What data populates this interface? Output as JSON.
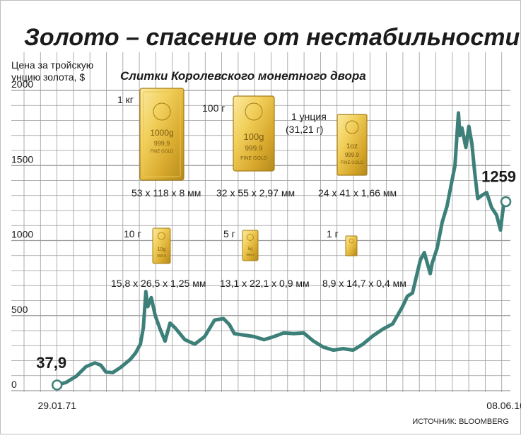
{
  "chart_data": {
    "type": "line",
    "title": "Золото – спасение от нестабильности",
    "ylabel": "Цена за тройскую унцию золота, $",
    "ylim": [
      0,
      2000
    ],
    "y_ticks": [
      "2000",
      "1500",
      "1000",
      "500",
      "0"
    ],
    "x_tick_labels": [
      "29.01.71",
      "08.06.16"
    ],
    "grid": true,
    "series": [
      {
        "name": "",
        "color": "#3d8079",
        "x": [
          1971.08,
          1972.0,
          1973.0,
          1974.0,
          1974.9,
          1975.5,
          1976.0,
          1976.7,
          1977.5,
          1978.5,
          1979.0,
          1979.5,
          1979.8,
          1980.05,
          1980.25,
          1980.6,
          1981.0,
          1981.5,
          1982.0,
          1982.5,
          1983.0,
          1983.5,
          1984.0,
          1985.0,
          1986.0,
          1987.0,
          1987.9,
          1988.5,
          1989.0,
          1990.0,
          1991.0,
          1992.0,
          1993.0,
          1994.0,
          1995.0,
          1996.0,
          1997.0,
          1998.0,
          1999.0,
          2000.0,
          2001.0,
          2002.0,
          2003.0,
          2004.0,
          2005.0,
          2006.0,
          2006.5,
          2007.0,
          2007.8,
          2008.2,
          2008.8,
          2009.0,
          2009.5,
          2010.0,
          2010.5,
          2011.0,
          2011.3,
          2011.65,
          2011.8,
          2012.0,
          2012.4,
          2012.7,
          2013.0,
          2013.3,
          2013.6,
          2014.0,
          2014.5,
          2015.0,
          2015.5,
          2015.9,
          2016.1,
          2016.3,
          2016.44
        ],
        "values": [
          37.9,
          55,
          95,
          160,
          185,
          170,
          125,
          120,
          155,
          210,
          250,
          310,
          420,
          660,
          560,
          620,
          500,
          410,
          330,
          450,
          420,
          380,
          340,
          310,
          360,
          470,
          480,
          440,
          380,
          370,
          360,
          340,
          360,
          385,
          380,
          385,
          330,
          290,
          270,
          280,
          270,
          310,
          365,
          410,
          445,
          560,
          630,
          650,
          870,
          920,
          780,
          850,
          950,
          1120,
          1230,
          1400,
          1500,
          1850,
          1700,
          1750,
          1620,
          1760,
          1650,
          1450,
          1280,
          1300,
          1320,
          1220,
          1170,
          1070,
          1180,
          1270,
          1259
        ]
      }
    ],
    "xlim": [
      1969.6,
      2016.9
    ],
    "annotations": [
      {
        "label": "37,9",
        "x": 1971.08,
        "y": 37.9
      },
      {
        "label": "1259",
        "x": 2016.44,
        "y": 1259
      }
    ]
  },
  "bars_panel": {
    "title": "Слитки Королевского монетного двора",
    "items": [
      {
        "weight": "1 кг",
        "size": "53 x 118 x 8 мм",
        "stamp_lines": [
          "1000g",
          "999.9",
          "FINE GOLD"
        ]
      },
      {
        "weight": "100 г",
        "size": "32 x 55 x 2,97 мм",
        "stamp_lines": [
          "100g",
          "999.9",
          "FINE GOLD"
        ]
      },
      {
        "weight": "1 унция",
        "weight_note": "(31,21 г)",
        "size": "24 x 41 x 1,66 мм",
        "stamp_lines": [
          "1oz",
          "999.9",
          "FINE GOLD"
        ]
      },
      {
        "weight": "10 г",
        "size": "15,8 x 26,5 x 1,25 мм",
        "stamp_lines": [
          "10g",
          "999.9"
        ]
      },
      {
        "weight": "5 г",
        "size": "13,1 x 22,1 x 0,9 мм",
        "stamp_lines": [
          "5g",
          "999.9"
        ]
      },
      {
        "weight": "1 г",
        "size": "8,9 x 14,7 x 0,4 мм",
        "stamp_lines": []
      }
    ]
  },
  "source": "ИСТОЧНИК: BLOOMBERG",
  "colors": {
    "line": "#3d8079",
    "grid": "#9a9a9a",
    "gold_light": "#f6e08a",
    "gold_dark": "#b48a1c"
  }
}
